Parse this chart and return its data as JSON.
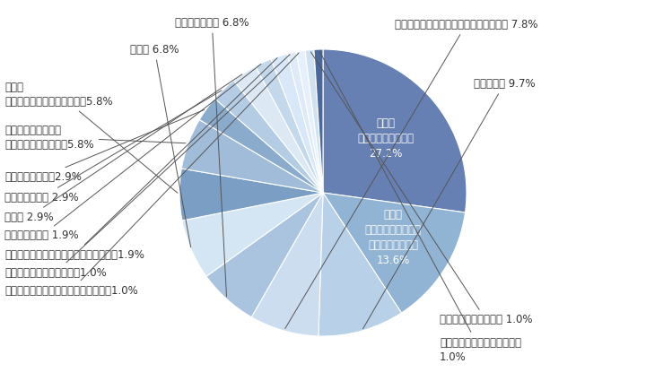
{
  "slices": [
    {
      "label_inner": "製造業\n（輸送用機械器具）\n27.2%",
      "label_outer": null,
      "value": 27.2,
      "color": "#6680b3"
    },
    {
      "label_inner": "製造業\n（はん用・生産用・\n業務用機械器具）\n13.6%",
      "label_outer": null,
      "value": 13.6,
      "color": "#92b4d4"
    },
    {
      "label_inner": null,
      "label_outer": "情報通信業 9.7%",
      "value": 9.7,
      "color": "#b8d0e8"
    },
    {
      "label_inner": null,
      "label_outer": "製造業（鉄鋼業、非鉄金属・金属製品） 7.8%",
      "value": 7.8,
      "color": "#ccddf0"
    },
    {
      "label_inner": null,
      "label_outer": "専門サービス業 6.8%",
      "value": 6.8,
      "color": "#aac4e0"
    },
    {
      "label_inner": null,
      "label_outer": "建設業 6.8%",
      "value": 6.8,
      "color": "#d4e6f4"
    },
    {
      "label_inner": null,
      "label_outer": "製造業\n（電気・情報通信機械器具）5.8%",
      "value": 5.8,
      "color": "#7a9ec4"
    },
    {
      "label_inner": null,
      "label_outer": "製造業（電子部品・\nデバイス・電子回路）5.8%",
      "value": 5.8,
      "color": "#a0bcd8"
    },
    {
      "label_inner": null,
      "label_outer": "製造業（その他）2.9%",
      "value": 2.9,
      "color": "#8aabcc"
    },
    {
      "label_inner": null,
      "label_outer": "卸売業、小売業 2.9%",
      "value": 2.9,
      "color": "#b4cce4"
    },
    {
      "label_inner": null,
      "label_outer": "公務員 2.9%",
      "value": 2.9,
      "color": "#dce8f4"
    },
    {
      "label_inner": null,
      "label_outer": "運輸業、郵便業 1.9%",
      "value": 1.9,
      "color": "#c4d8ec"
    },
    {
      "label_inner": null,
      "label_outer": "製造業（食料品・飲料・たばこ・飼料）1.9%",
      "value": 1.9,
      "color": "#d8e8f8"
    },
    {
      "label_inner": null,
      "label_outer": "製造業（印刷・同関連業）1.0%",
      "value": 1.0,
      "color": "#deeaf8"
    },
    {
      "label_inner": null,
      "label_outer": "製造業（化学工業、石油・石炭製品）1.0%",
      "value": 1.0,
      "color": "#e6f0fc"
    },
    {
      "label_inner": null,
      "label_outer": "不動産業、物品賃貸業 1.0%",
      "value": 1.0,
      "color": "#d0e2f0"
    },
    {
      "label_inner": null,
      "label_outer": "電気・ガス・熱供給・水道業\n1.0%",
      "value": 1.0,
      "color": "#4a6898"
    }
  ],
  "background_color": "#ffffff",
  "text_color": "#333333",
  "line_color": "#555555",
  "inner_text_color": "#ffffff",
  "fontsize": 8.5
}
